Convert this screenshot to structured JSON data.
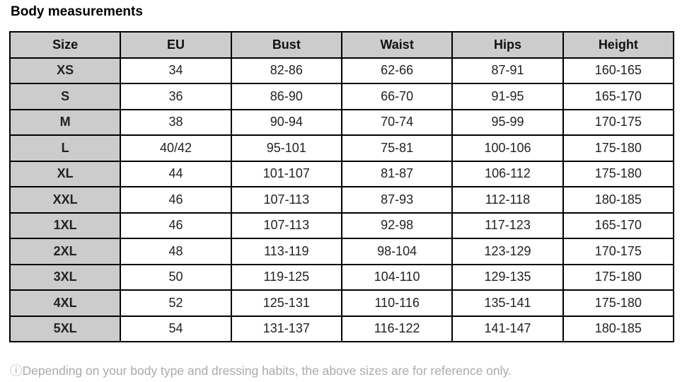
{
  "title": "Body measurements",
  "columns": [
    "Size",
    "EU",
    "Bust",
    "Waist",
    "Hips",
    "Height"
  ],
  "rows": [
    [
      "XS",
      "34",
      "82-86",
      "62-66",
      "87-91",
      "160-165"
    ],
    [
      "S",
      "36",
      "86-90",
      "66-70",
      "91-95",
      "165-170"
    ],
    [
      "M",
      "38",
      "90-94",
      "70-74",
      "95-99",
      "170-175"
    ],
    [
      "L",
      "40/42",
      "95-101",
      "75-81",
      "100-106",
      "175-180"
    ],
    [
      "XL",
      "44",
      "101-107",
      "81-87",
      "106-112",
      "175-180"
    ],
    [
      "XXL",
      "46",
      "107-113",
      "87-93",
      "112-118",
      "180-185"
    ],
    [
      "1XL",
      "46",
      "107-113",
      "92-98",
      "117-123",
      "165-170"
    ],
    [
      "2XL",
      "48",
      "113-119",
      "98-104",
      "123-129",
      "170-175"
    ],
    [
      "3XL",
      "50",
      "119-125",
      "104-110",
      "129-135",
      "175-180"
    ],
    [
      "4XL",
      "52",
      "125-131",
      "110-116",
      "135-141",
      "175-180"
    ],
    [
      "5XL",
      "54",
      "131-137",
      "116-122",
      "141-147",
      "180-185"
    ]
  ],
  "note": "ⓘDepending on your body type and dressing habits, the above sizes are for reference only.",
  "colors": {
    "header_bg": "#cccccc",
    "border": "#000000",
    "note_text": "#aaaaaa"
  }
}
